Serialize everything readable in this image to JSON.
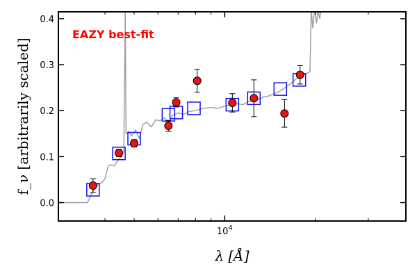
{
  "chart_data": {
    "type": "scatter",
    "annotation": "EAZY best-fit",
    "ylabel": "f_ν [arbitrarily scaled]",
    "xlabel": "λ [Å]",
    "xscale": "log",
    "xlim": [
      2800,
      40000
    ],
    "ylim": [
      -0.04,
      0.415
    ],
    "yticks": [
      0.0,
      0.1,
      0.2,
      0.3,
      0.4
    ],
    "ytick_labels": [
      "0.0",
      "0.1",
      "0.2",
      "0.3",
      "0.4"
    ],
    "xticks_major": [
      10000
    ],
    "xtick_major_labels": [
      "10^4"
    ],
    "xticks_minor": [
      4000,
      5000,
      6000,
      7000,
      8000,
      9000,
      20000,
      30000
    ],
    "colors": {
      "template": "#a0a0a0",
      "observed": "#ee1111",
      "model": "#1111ee",
      "annotation": "#ff0000"
    },
    "observed": [
      {
        "x": 3650,
        "y": 0.037,
        "err": 0.015
      },
      {
        "x": 4450,
        "y": 0.108,
        "err": 0.008
      },
      {
        "x": 5000,
        "y": 0.129,
        "err": 0.008
      },
      {
        "x": 6500,
        "y": 0.167,
        "err": 0.012
      },
      {
        "x": 6900,
        "y": 0.218,
        "err": 0.01
      },
      {
        "x": 8100,
        "y": 0.265,
        "err": 0.025
      },
      {
        "x": 10600,
        "y": 0.217,
        "err": 0.02
      },
      {
        "x": 12500,
        "y": 0.227,
        "err": 0.04
      },
      {
        "x": 15800,
        "y": 0.194,
        "err": 0.03
      },
      {
        "x": 17800,
        "y": 0.278,
        "err": 0.02
      }
    ],
    "model": [
      {
        "x": 3650,
        "y": 0.028
      },
      {
        "x": 4450,
        "y": 0.107
      },
      {
        "x": 5000,
        "y": 0.139
      },
      {
        "x": 6500,
        "y": 0.191
      },
      {
        "x": 6900,
        "y": 0.196
      },
      {
        "x": 7900,
        "y": 0.205
      },
      {
        "x": 10600,
        "y": 0.213
      },
      {
        "x": 12500,
        "y": 0.227
      },
      {
        "x": 15300,
        "y": 0.247
      },
      {
        "x": 17700,
        "y": 0.267
      }
    ],
    "template": [
      [
        2800,
        0.0
      ],
      [
        3500,
        0.0
      ],
      [
        3600,
        0.018
      ],
      [
        3700,
        0.03
      ],
      [
        3800,
        0.04
      ],
      [
        3900,
        0.043
      ],
      [
        4000,
        0.052
      ],
      [
        4100,
        0.08
      ],
      [
        4200,
        0.082
      ],
      [
        4300,
        0.08
      ],
      [
        4400,
        0.09
      ],
      [
        4550,
        0.102
      ],
      [
        4620,
        0.112
      ],
      [
        4670,
        0.42
      ],
      [
        4700,
        0.15
      ],
      [
        4800,
        0.155
      ],
      [
        4900,
        0.145
      ],
      [
        5050,
        0.158
      ],
      [
        5200,
        0.14
      ],
      [
        5350,
        0.17
      ],
      [
        5500,
        0.175
      ],
      [
        5700,
        0.165
      ],
      [
        5900,
        0.18
      ],
      [
        6100,
        0.178
      ],
      [
        6300,
        0.185
      ],
      [
        6500,
        0.168
      ],
      [
        6700,
        0.19
      ],
      [
        7000,
        0.195
      ],
      [
        7300,
        0.192
      ],
      [
        7600,
        0.198
      ],
      [
        8000,
        0.2
      ],
      [
        8500,
        0.205
      ],
      [
        9000,
        0.207
      ],
      [
        9500,
        0.205
      ],
      [
        10000,
        0.21
      ],
      [
        10500,
        0.212
      ],
      [
        11000,
        0.215
      ],
      [
        11500,
        0.213
      ],
      [
        12000,
        0.22
      ],
      [
        12500,
        0.222
      ],
      [
        13000,
        0.225
      ],
      [
        13500,
        0.23
      ],
      [
        14000,
        0.232
      ],
      [
        14500,
        0.236
      ],
      [
        15000,
        0.24
      ],
      [
        15500,
        0.245
      ],
      [
        16000,
        0.252
      ],
      [
        16500,
        0.258
      ],
      [
        17000,
        0.265
      ],
      [
        17500,
        0.272
      ],
      [
        18000,
        0.276
      ],
      [
        18600,
        0.28
      ],
      [
        19200,
        0.285
      ],
      [
        19400,
        0.42
      ],
      [
        19600,
        0.38
      ],
      [
        19900,
        0.42
      ],
      [
        20200,
        0.39
      ],
      [
        20400,
        0.42
      ],
      [
        20700,
        0.4
      ],
      [
        20900,
        0.42
      ],
      [
        22500,
        0.42
      ]
    ]
  }
}
